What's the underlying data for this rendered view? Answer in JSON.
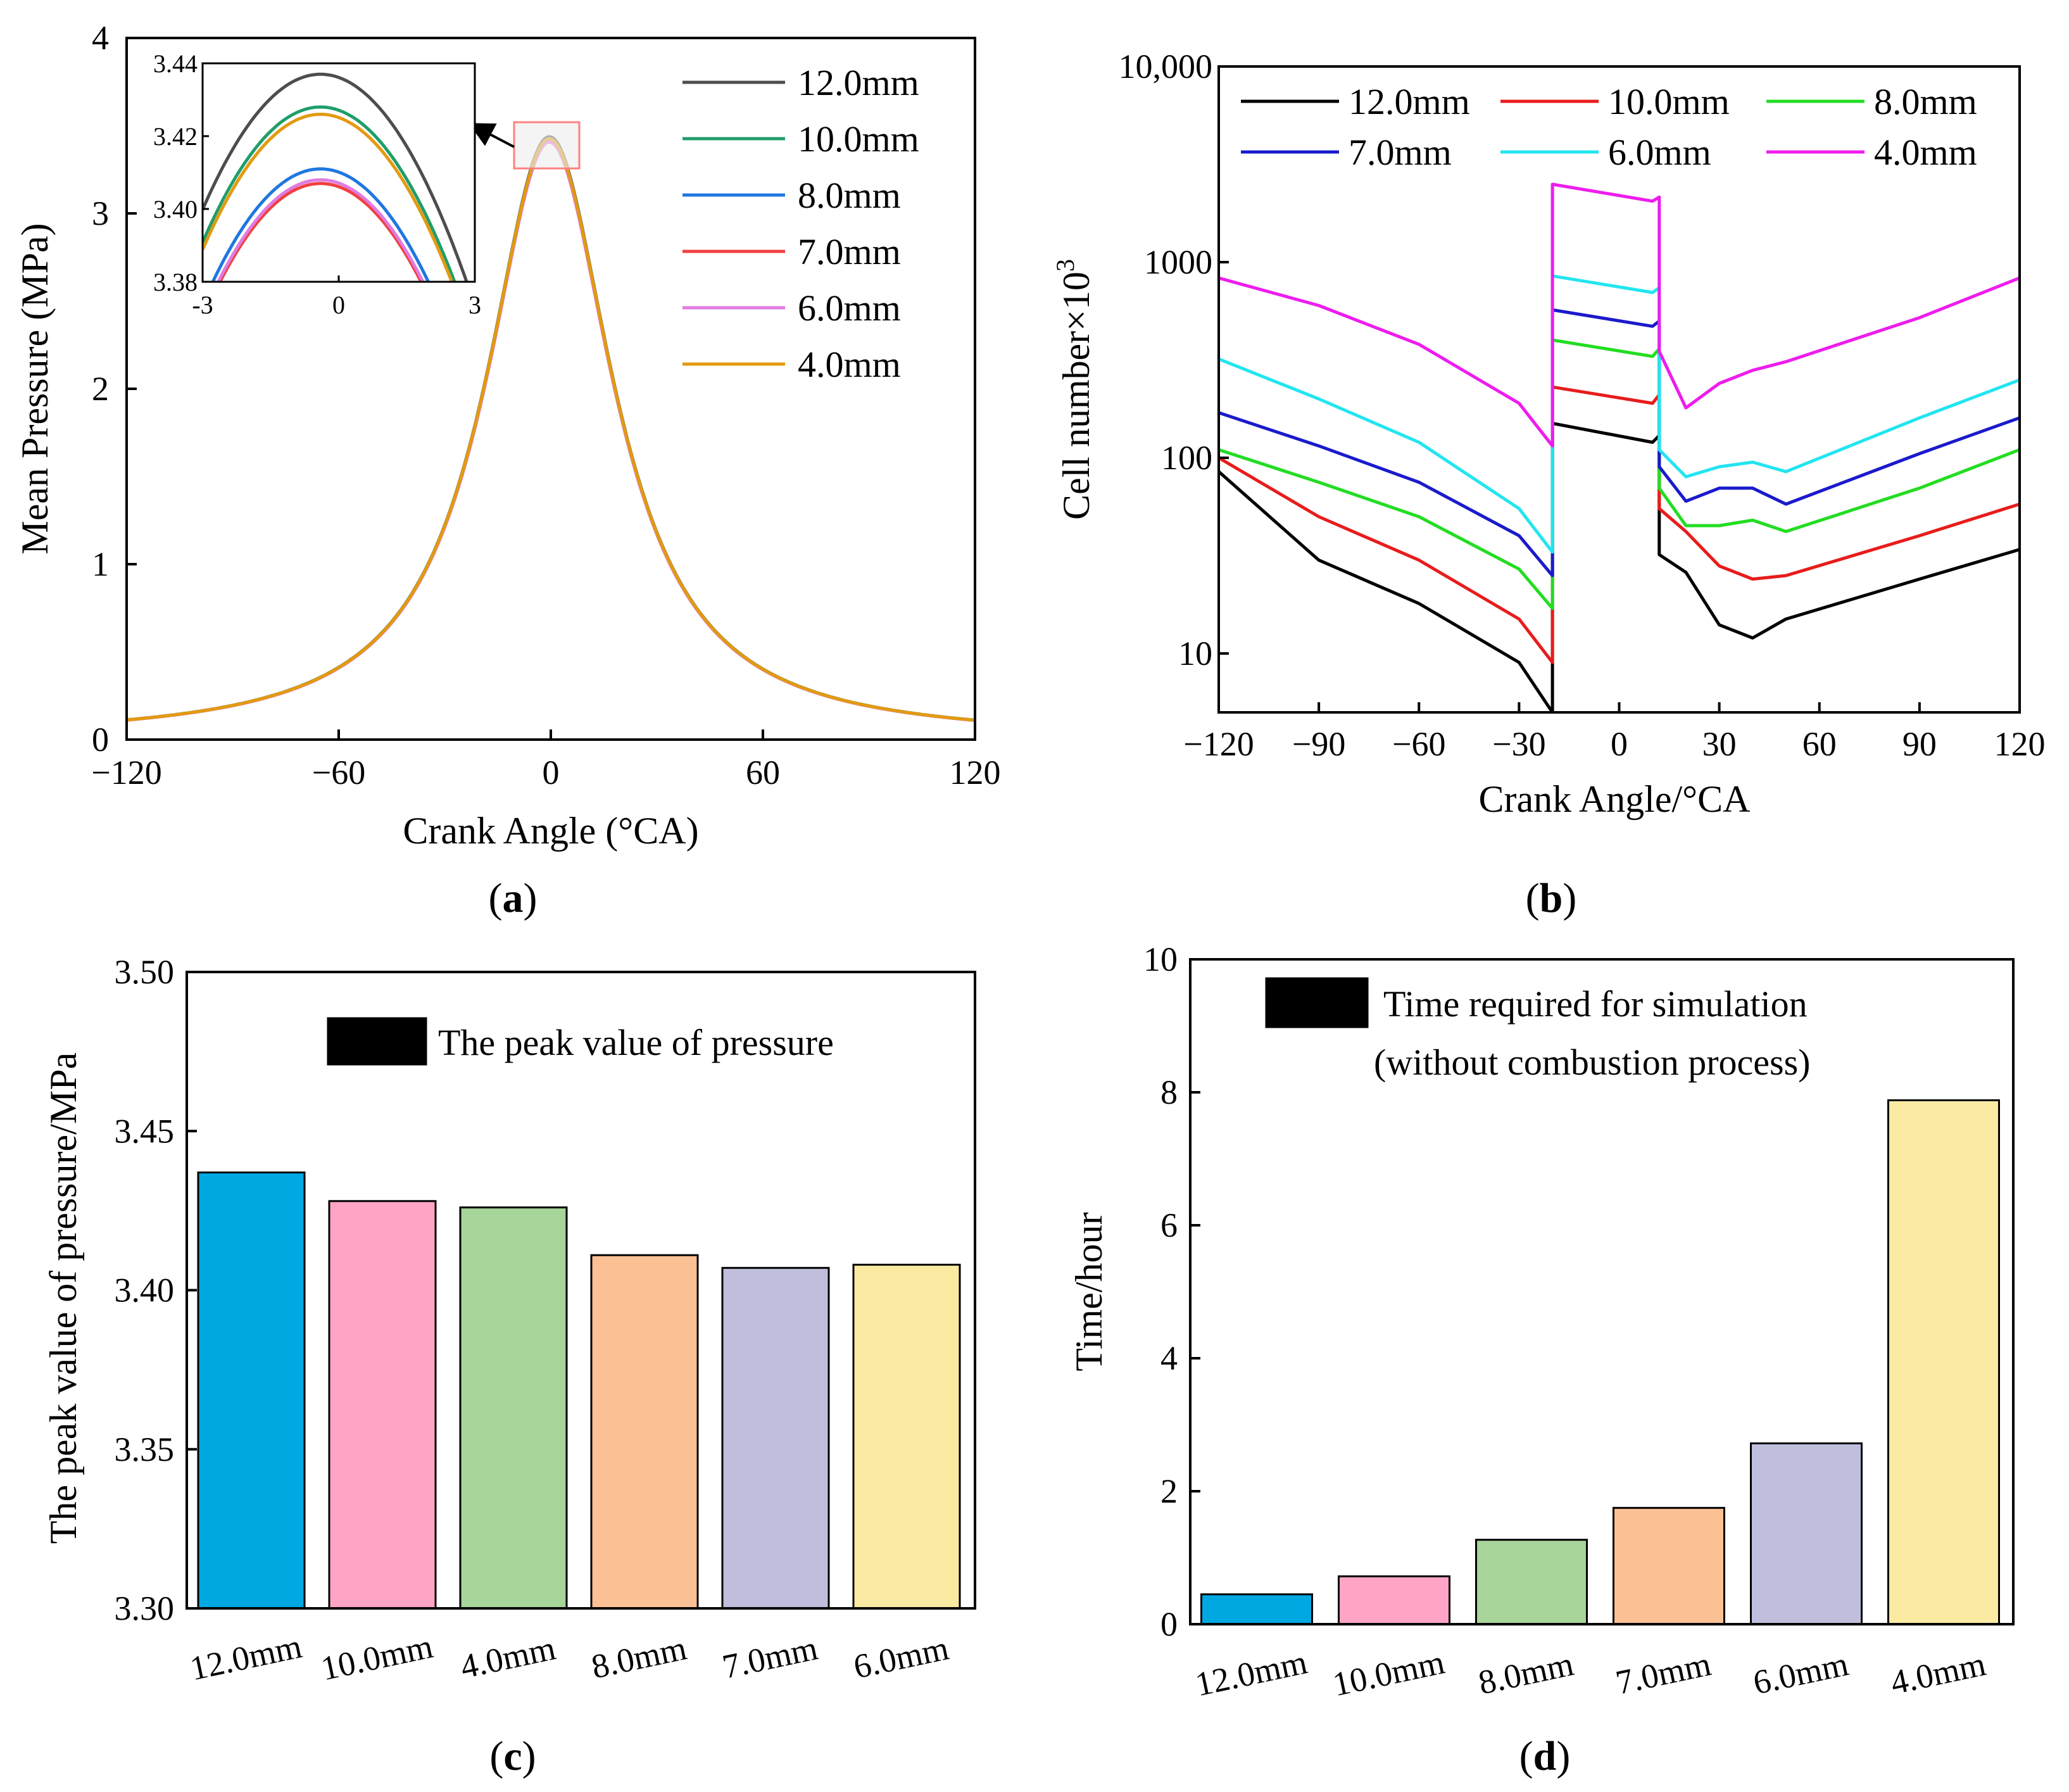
{
  "captions": {
    "a": "a",
    "b": "b",
    "c": "c",
    "d": "d",
    "open": "(",
    "close": ")"
  },
  "chart_data": [
    {
      "id": "a",
      "type": "line",
      "xlabel": "Crank Angle (°CA)",
      "ylabel": "Mean Pressure (MPa)",
      "xlim": [
        -120,
        120
      ],
      "ylim": [
        0,
        4
      ],
      "xticks": [
        "−120",
        "−60",
        "0",
        "60",
        "120"
      ],
      "xtick_values": [
        -120,
        -60,
        0,
        60,
        120
      ],
      "yticks": [
        "0",
        "1",
        "2",
        "3",
        "4"
      ],
      "ytick_values": [
        0,
        1,
        2,
        3,
        4
      ],
      "curve_model": "lorentzian",
      "series": [
        {
          "name": "12.0mm",
          "color": "#4d4d4d",
          "peak": 3.437,
          "peak_angle": -0.4,
          "base": 0.0,
          "half_width": 22
        },
        {
          "name": "10.0mm",
          "color": "#1f9e6a",
          "peak": 3.428,
          "peak_angle": -0.4,
          "base": 0.0,
          "half_width": 22
        },
        {
          "name": "8.0mm",
          "color": "#1f77e0",
          "peak": 3.411,
          "peak_angle": -0.4,
          "base": 0.0,
          "half_width": 22
        },
        {
          "name": "7.0mm",
          "color": "#f04040",
          "peak": 3.407,
          "peak_angle": -0.4,
          "base": 0.0,
          "half_width": 22
        },
        {
          "name": "6.0mm",
          "color": "#e07be0",
          "peak": 3.408,
          "peak_angle": -0.4,
          "base": 0.0,
          "half_width": 22
        },
        {
          "name": "4.0mm",
          "color": "#e39a10",
          "peak": 3.426,
          "peak_angle": -0.4,
          "base": 0.0,
          "half_width": 22
        }
      ],
      "inset": {
        "xlim": [
          -3,
          3
        ],
        "ylim": [
          3.38,
          3.44
        ],
        "xticks": [
          "-3",
          "0",
          "3"
        ],
        "xtick_values": [
          -3,
          0,
          3
        ],
        "yticks": [
          "3.38",
          "3.40",
          "3.42",
          "3.44"
        ],
        "ytick_values": [
          3.38,
          3.4,
          3.42,
          3.44
        ],
        "curvature": 0.0055
      }
    },
    {
      "id": "b",
      "type": "line",
      "yscale": "log",
      "xlabel": "Crank Angle/°CA",
      "ylabel": "Cell number×10",
      "ylabel_sup": "3",
      "xlim": [
        -120,
        120
      ],
      "ylim": [
        5,
        10000
      ],
      "xticks": [
        "−120",
        "−90",
        "−60",
        "−30",
        "0",
        "30",
        "60",
        "90",
        "120"
      ],
      "xtick_values": [
        -120,
        -90,
        -60,
        -30,
        0,
        30,
        60,
        90,
        120
      ],
      "yticks": [
        "10",
        "100",
        "1000",
        "10,000"
      ],
      "ytick_values": [
        10,
        100,
        1000,
        10000
      ],
      "series": [
        {
          "name": "12.0mm",
          "color": "#000000",
          "points": [
            [
              -120,
              85
            ],
            [
              -90,
              30
            ],
            [
              -60,
              18
            ],
            [
              -30,
              9
            ],
            [
              -20,
              5
            ],
            [
              -20,
              150
            ],
            [
              10,
              120
            ],
            [
              12,
              130
            ],
            [
              12,
              32
            ],
            [
              20,
              26
            ],
            [
              30,
              14
            ],
            [
              40,
              12
            ],
            [
              50,
              15
            ],
            [
              90,
              24
            ],
            [
              120,
              34
            ]
          ]
        },
        {
          "name": "10.0mm",
          "color": "#e81c1c",
          "points": [
            [
              -120,
              100
            ],
            [
              -90,
              50
            ],
            [
              -60,
              30
            ],
            [
              -30,
              15
            ],
            [
              -20,
              9
            ],
            [
              -20,
              230
            ],
            [
              10,
              190
            ],
            [
              12,
              210
            ],
            [
              12,
              55
            ],
            [
              20,
              42
            ],
            [
              30,
              28
            ],
            [
              40,
              24
            ],
            [
              50,
              25
            ],
            [
              90,
              40
            ],
            [
              120,
              58
            ]
          ]
        },
        {
          "name": "8.0mm",
          "color": "#22dd22",
          "points": [
            [
              -120,
              110
            ],
            [
              -90,
              75
            ],
            [
              -60,
              50
            ],
            [
              -30,
              27
            ],
            [
              -20,
              17
            ],
            [
              -20,
              400
            ],
            [
              10,
              330
            ],
            [
              12,
              360
            ],
            [
              12,
              70
            ],
            [
              20,
              45
            ],
            [
              30,
              45
            ],
            [
              40,
              48
            ],
            [
              50,
              42
            ],
            [
              90,
              70
            ],
            [
              120,
              110
            ]
          ]
        },
        {
          "name": "7.0mm",
          "color": "#1a1acc",
          "points": [
            [
              -120,
              170
            ],
            [
              -90,
              115
            ],
            [
              -60,
              75
            ],
            [
              -30,
              40
            ],
            [
              -20,
              25
            ],
            [
              -20,
              570
            ],
            [
              10,
              470
            ],
            [
              12,
              500
            ],
            [
              12,
              90
            ],
            [
              20,
              60
            ],
            [
              30,
              70
            ],
            [
              40,
              70
            ],
            [
              50,
              58
            ],
            [
              90,
              105
            ],
            [
              120,
              160
            ]
          ]
        },
        {
          "name": "6.0mm",
          "color": "#22e5f0",
          "points": [
            [
              -120,
              320
            ],
            [
              -90,
              200
            ],
            [
              -60,
              120
            ],
            [
              -30,
              55
            ],
            [
              -20,
              33
            ],
            [
              -20,
              850
            ],
            [
              10,
              700
            ],
            [
              12,
              740
            ],
            [
              12,
              110
            ],
            [
              20,
              80
            ],
            [
              30,
              90
            ],
            [
              40,
              95
            ],
            [
              50,
              85
            ],
            [
              90,
              160
            ],
            [
              120,
              250
            ]
          ]
        },
        {
          "name": "4.0mm",
          "color": "#ee1cee",
          "points": [
            [
              -120,
              830
            ],
            [
              -90,
              600
            ],
            [
              -60,
              380
            ],
            [
              -30,
              190
            ],
            [
              -20,
              115
            ],
            [
              -20,
              2500
            ],
            [
              10,
              2050
            ],
            [
              12,
              2150
            ],
            [
              12,
              350
            ],
            [
              20,
              180
            ],
            [
              30,
              240
            ],
            [
              40,
              280
            ],
            [
              50,
              310
            ],
            [
              90,
              520
            ],
            [
              120,
              830
            ]
          ]
        }
      ]
    },
    {
      "id": "c",
      "type": "bar",
      "ylabel": "The peak value of pressure/MPa",
      "legend": "The peak value of pressure",
      "legend_color": "#00a8e1",
      "ylim": [
        3.3,
        3.5
      ],
      "yticks": [
        "3.30",
        "3.35",
        "3.40",
        "3.45",
        "3.50"
      ],
      "ytick_values": [
        3.3,
        3.35,
        3.4,
        3.45,
        3.5
      ],
      "categories": [
        "12.0mm",
        "10.0mm",
        "4.0mm",
        "8.0mm",
        "7.0mm",
        "6.0mm"
      ],
      "values": [
        3.437,
        3.428,
        3.426,
        3.411,
        3.407,
        3.408
      ],
      "colors": [
        "#00a8e1",
        "#ffa4c6",
        "#a7d59a",
        "#fbc093",
        "#bfbfdd",
        "#fbeba2"
      ]
    },
    {
      "id": "d",
      "type": "bar",
      "ylabel": "Time/hour",
      "legend": [
        "Time required for simulation",
        "(without combustion process)"
      ],
      "legend_color": "#00a8e1",
      "ylim": [
        0,
        10
      ],
      "yticks": [
        "0",
        "2",
        "4",
        "6",
        "8",
        "10"
      ],
      "ytick_values": [
        0,
        2,
        4,
        6,
        8,
        10
      ],
      "categories": [
        "12.0mm",
        "10.0mm",
        "8.0mm",
        "7.0mm",
        "6.0mm",
        "4.0mm"
      ],
      "values": [
        0.45,
        0.72,
        1.27,
        1.75,
        2.72,
        7.88
      ],
      "colors": [
        "#00a8e1",
        "#ffa4c6",
        "#a7d59a",
        "#fbc093",
        "#bfbfdd",
        "#fbeba2"
      ]
    }
  ]
}
